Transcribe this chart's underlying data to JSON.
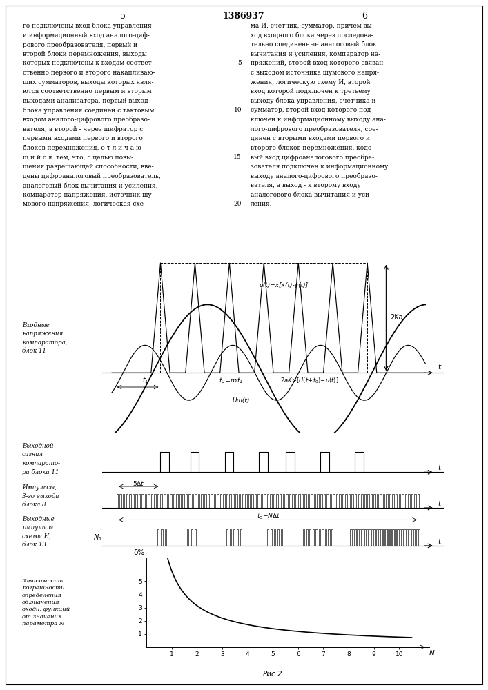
{
  "page_title": "1386937",
  "col_left": "5",
  "col_right": "6",
  "left_text": "го подключены вход блока управления\nи информационный вход аналого-циф-\nрового преобразователя, первый и\nвторой блоки перемножения, выходы\nкоторых подключены к входам соответ-\nственно первого и второго накапливаю-\nщих сумматоров, выходы которых явля-\nются соответственно первым и вторым\nвыходами анализатора, первый выход\nблока управления соединен с тактовым\nвходом аналого-цифрового преобразо-\nвателя, а второй - через шифратор с\nпервыми входами первого и второго\nблоков перемножения, о т л и ч а ю -\nщ и й с я  тем, что, с целью повы-\nшения разрешающей способности, вве-\nдены цифроаналоговый преобразователь,\nаналоговый блок вычитания и усиления,\nкомпаратор напряжения, источник шу-\nмового напряжения, логическая схе-",
  "right_text": "ма И, счетчик, сумматор, причем вы-\nход входного блока через последова-\nтельно соединенные аналоговый блок\nвычитания и усиления, компаратор на-\nпряжений, второй вход которого связан\nс выходом источника шумового напря-\nжения, логическую схему И, второй\nвход которой подключен к третьему\nвыходу блока управления, счетчика и\nсумматор, второй вход которого под-\nключен к информационному выходу ана-\nлого-цифрового преобразователя, сое-\nдинен с вторыми входами первого и\nвторого блоков перемножения, кодо-\nвый вход цифроаналогового преобра-\nзователя подключен к информационному\nвыходу аналого-цифрового преобразо-\nвателя, а выход - к второму входу\nаналогового блока вычитания и уси-\nления.",
  "line_numbers": [
    5,
    10,
    15,
    20
  ],
  "subplot1_ylabel": "Входные\nнапряжения\nкомпаратора,\nблок 11",
  "subplot2_ylabel": "Выходной\nсигнал\nкомпарато-\nра блока 11",
  "subplot3_ylabel": "Импульсы,\n3-го выхода\nблока 8",
  "subplot4_ylabel": "Выходные\nимпульсы\nсхемы И,\nблок 13",
  "subplot5_ylabel": "Зависимость\nпогрешности\nопределения\nоб.значения\nвходн. функций\nот значения\nпараметра N",
  "fig2_label": "Рис.2",
  "annot_u_formula": "u(t)=x[x(t)-y(t)]",
  "annot_u_sh": "Uш(t)",
  "annot_2ka": "2Ka",
  "annot_5dt": "5Δt",
  "annot_t0_N": "t₀=NΔt",
  "annot_N1": "N₁",
  "annot_delta": "δ%",
  "yticks5": [
    1,
    2,
    3,
    4,
    5
  ],
  "xticks5": [
    1,
    2,
    3,
    4,
    5,
    6,
    7,
    8,
    9,
    10
  ]
}
